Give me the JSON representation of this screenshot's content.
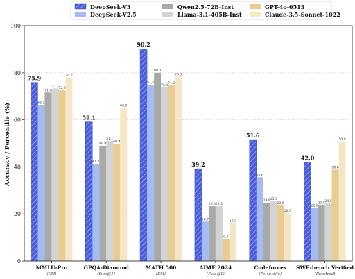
{
  "chart_data": {
    "type": "bar",
    "title": "",
    "xlabel": "",
    "ylabel": "Accuracy / Percentile (%)",
    "ylim": [
      0,
      100
    ],
    "yticks": [
      0,
      20,
      40,
      60,
      80,
      100
    ],
    "grid": "horizontal-dashed",
    "legend": "top-center",
    "categories": [
      "MMLU-Pro",
      "GPQA-Diamond",
      "MATH 500",
      "AIME 2024",
      "Codeforces",
      "SWE-bench Verified"
    ],
    "subtitles": [
      "(EM)",
      "(Pass@1)",
      "(EM)",
      "(Pass@1)",
      "(Percentile)",
      "(Resolved)"
    ],
    "series": [
      {
        "name": "DeepSeek-V3",
        "color": "#4a5ddd",
        "hatch": true,
        "values": [
          75.9,
          59.1,
          90.2,
          39.2,
          51.6,
          42.0
        ]
      },
      {
        "name": "DeepSeek-V2.5",
        "color": "#a4bbf3",
        "values": [
          66.2,
          41.3,
          74.7,
          16.7,
          35.6,
          22.6
        ]
      },
      {
        "name": "Qwen2.5-72B-Inst",
        "color": "#a9a9a9",
        "values": [
          71.6,
          49.0,
          80.0,
          23.3,
          24.8,
          23.8
        ]
      },
      {
        "name": "Llama-3.1-405B-Inst",
        "color": "#d3d3d3",
        "values": [
          73.3,
          51.1,
          73.8,
          23.3,
          25.3,
          24.5
        ]
      },
      {
        "name": "GPT-4o-0513",
        "color": "#e8cc91",
        "values": [
          72.6,
          49.9,
          74.6,
          9.3,
          23.6,
          38.8
        ]
      },
      {
        "name": "Claude-3.5-Sonnet-1022",
        "color": "#f5e7c6",
        "values": [
          78.0,
          65.0,
          78.3,
          16.0,
          20.3,
          50.8
        ]
      }
    ]
  }
}
